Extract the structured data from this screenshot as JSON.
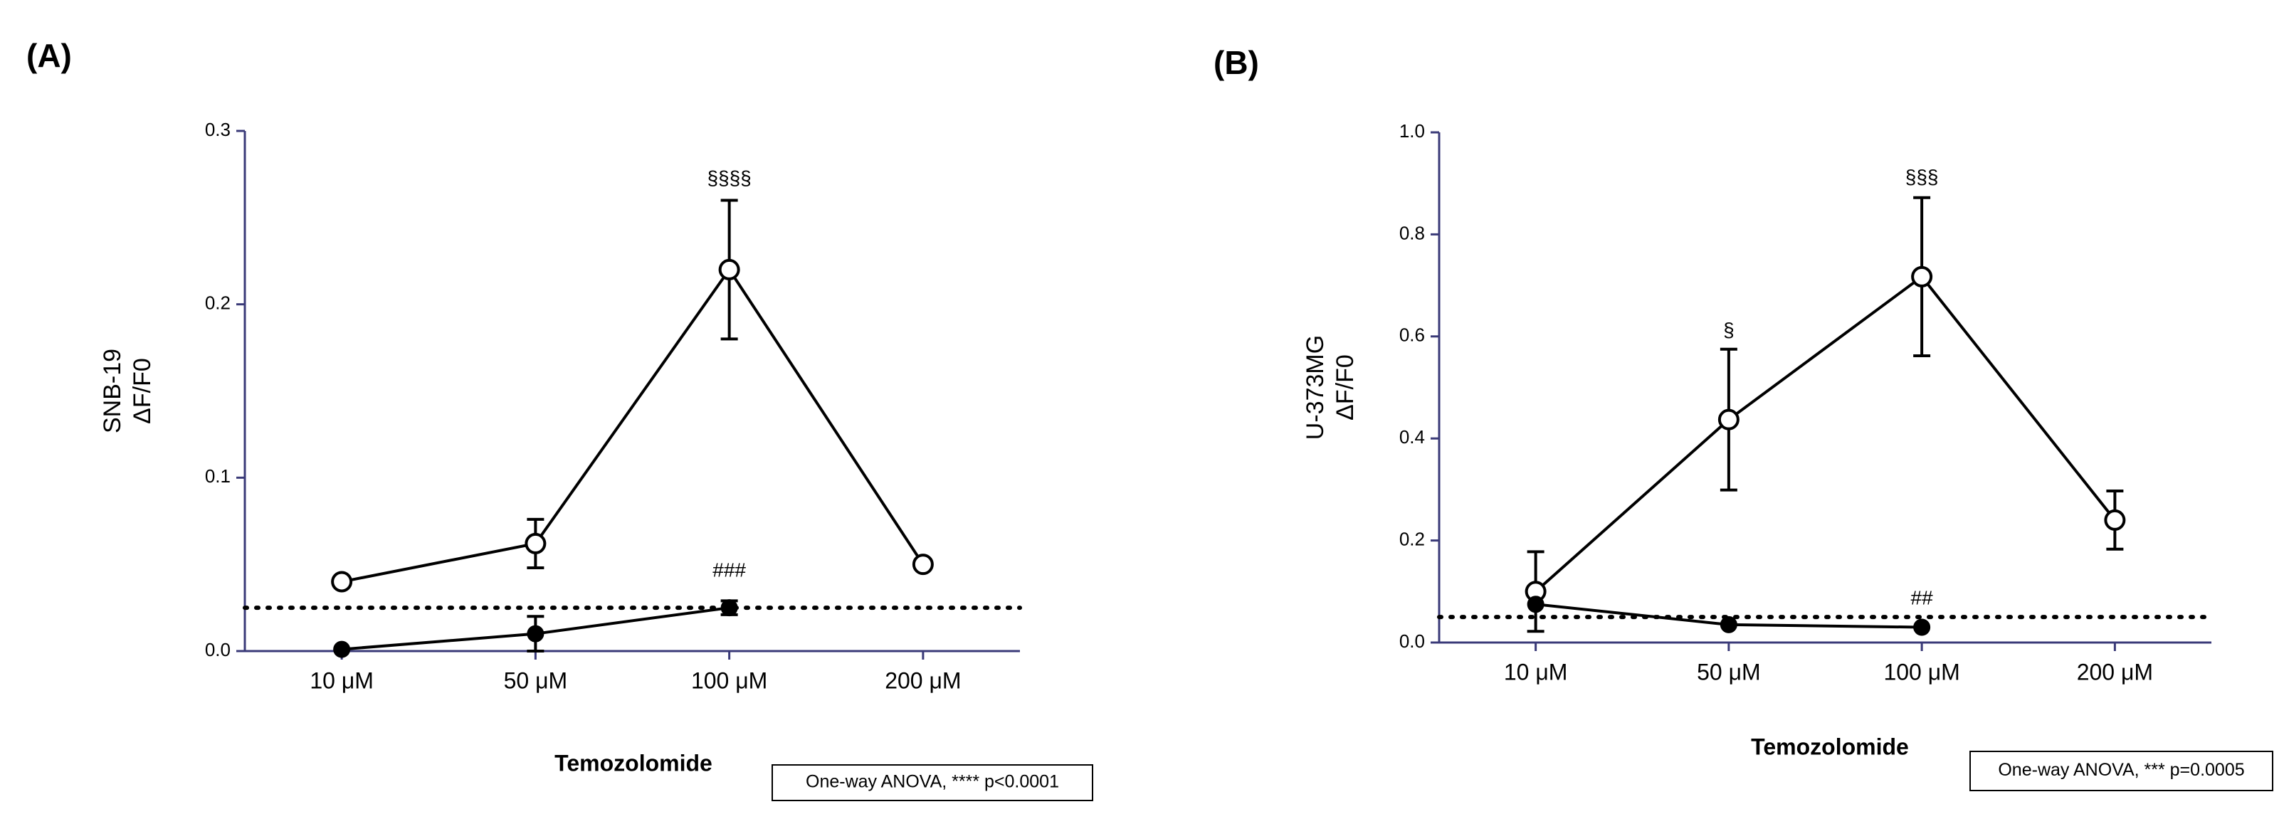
{
  "chart_data": [
    {
      "type": "line",
      "panel_label": "(A)",
      "y_label": [
        "SNB-19",
        "ΔF/F0"
      ],
      "x_label": "Temozolomide",
      "categories": [
        "10 μM",
        "50 μM",
        "100 μM",
        "200 μM"
      ],
      "ylim": [
        0,
        0.3
      ],
      "yticks": [
        {
          "value": 0,
          "label": "0.0"
        },
        0.1,
        0.2,
        0.3
      ],
      "series": [
        {
          "color": "#000000",
          "marker": "open",
          "values": [
            0.04,
            0.062,
            0.22,
            0.05
          ],
          "errors": [
            null,
            0.014,
            0.04,
            null
          ]
        },
        {
          "color": "#000000",
          "marker": "filled",
          "values": [
            0.001,
            0.01,
            0.025,
            null
          ],
          "errors": [
            null,
            0.01,
            0.004,
            null
          ]
        }
      ],
      "reference_line": 0.025,
      "annotations": [
        {
          "text": "§§§§",
          "x": "100 μM",
          "y": 0.272
        },
        {
          "text": "###",
          "x": "100 μM",
          "y": 0.046
        }
      ],
      "stats_note": "One-way ANOVA, **** p<0.0001"
    },
    {
      "type": "line",
      "panel_label": "(B)",
      "y_label": [
        "U-373MG",
        "ΔF/F0"
      ],
      "x_label": "Temozolomide",
      "categories": [
        "10 μM",
        "50 μM",
        "100 μM",
        "200 μM"
      ],
      "ylim": [
        0,
        1.0
      ],
      "yticks": [
        {
          "value": 0,
          "label": "0.0"
        },
        0.2,
        0.4,
        0.6,
        0.8,
        {
          "value": 1.0,
          "label": "1.0"
        }
      ],
      "series": [
        {
          "color": "#000000",
          "marker": "open",
          "values": [
            0.1,
            0.437,
            0.717,
            0.24
          ],
          "errors": [
            0.078,
            0.138,
            0.155,
            0.057
          ]
        },
        {
          "color": "#000000",
          "marker": "filled",
          "values": [
            0.075,
            0.035,
            0.03,
            null
          ],
          "errors": [
            null,
            null,
            null,
            null
          ]
        }
      ],
      "reference_line": 0.05,
      "annotations": [
        {
          "text": "§",
          "x": "50 μM",
          "y": 0.61
        },
        {
          "text": "§§§",
          "x": "100 μM",
          "y": 0.91
        },
        {
          "text": "##",
          "x": "100 μM",
          "y": 0.085
        }
      ],
      "stats_note": "One-way ANOVA, *** p=0.0005"
    }
  ]
}
